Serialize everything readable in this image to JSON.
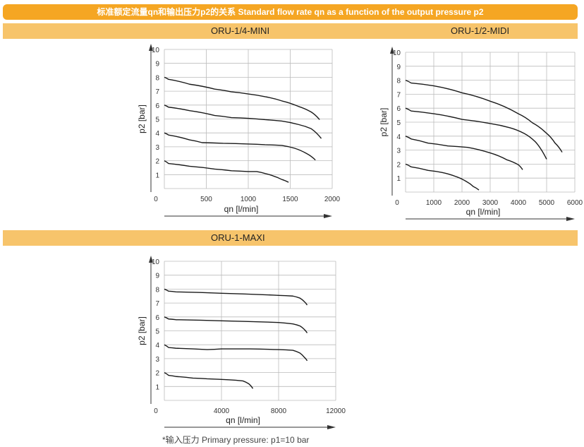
{
  "header": {
    "title": "标准额定流量qn和输出压力p2的关系 Standard flow rate qn as a function of the output pressure p2"
  },
  "sections": {
    "mini_label": "ORU-1/4-MINI",
    "midi_label": "ORU-1/2-MIDI",
    "maxi_label": "ORU-1-MAXI"
  },
  "footnote": "*输入压力 Primary pressure:  p1=10 bar",
  "colors": {
    "title_bar": "#f5a623",
    "section_bar": "#f7c46b",
    "curve": "#1a1a1a",
    "grid": "#bbbbbb"
  },
  "chart_data": [
    {
      "type": "line",
      "id": "mini",
      "xlabel": "qn [l/min]",
      "ylabel": "p2 [bar]",
      "xlim": [
        0,
        2000
      ],
      "ylim": [
        0,
        10
      ],
      "xticks": [
        "0",
        "500",
        "1000",
        "1500",
        "2000"
      ],
      "yticks": [
        "1",
        "2",
        "3",
        "4",
        "5",
        "6",
        "7",
        "8",
        "9",
        "10"
      ],
      "grid": true,
      "series": [
        {
          "x": [
            0,
            50,
            300,
            600,
            800,
            1000,
            1200,
            1400,
            1600,
            1750,
            1850
          ],
          "y": [
            8,
            7.85,
            7.5,
            7.15,
            6.95,
            6.8,
            6.6,
            6.3,
            5.9,
            5.5,
            4.95
          ]
        },
        {
          "x": [
            0,
            50,
            300,
            600,
            800,
            1000,
            1200,
            1400,
            1600,
            1750,
            1870
          ],
          "y": [
            6,
            5.85,
            5.6,
            5.25,
            5.1,
            5.05,
            4.95,
            4.85,
            4.6,
            4.3,
            3.6
          ]
        },
        {
          "x": [
            0,
            50,
            300,
            450,
            700,
            1000,
            1200,
            1400,
            1550,
            1700,
            1800
          ],
          "y": [
            4,
            3.85,
            3.5,
            3.3,
            3.25,
            3.2,
            3.15,
            3.1,
            2.9,
            2.5,
            2.05
          ]
        },
        {
          "x": [
            0,
            50,
            300,
            600,
            800,
            1000,
            1100,
            1200,
            1300,
            1400,
            1480
          ],
          "y": [
            2,
            1.8,
            1.6,
            1.4,
            1.28,
            1.22,
            1.22,
            1.08,
            0.9,
            0.65,
            0.45
          ]
        }
      ]
    },
    {
      "type": "line",
      "id": "midi",
      "xlabel": "qn [l/min]",
      "ylabel": "p2 [bar]",
      "xlim": [
        0,
        6000
      ],
      "ylim": [
        0,
        10
      ],
      "xticks": [
        "0",
        "1000",
        "2000",
        "3000",
        "4000",
        "5000",
        "6000"
      ],
      "yticks": [
        "1",
        "2",
        "3",
        "4",
        "5",
        "6",
        "7",
        "8",
        "9",
        "10"
      ],
      "grid": true,
      "series": [
        {
          "x": [
            0,
            200,
            1000,
            2000,
            3000,
            4000,
            4500,
            5000,
            5300,
            5550
          ],
          "y": [
            8,
            7.8,
            7.6,
            7.1,
            6.5,
            5.6,
            4.95,
            4.2,
            3.5,
            2.85
          ]
        },
        {
          "x": [
            0,
            200,
            1000,
            2000,
            3000,
            3700,
            4200,
            4600,
            5000
          ],
          "y": [
            6,
            5.8,
            5.6,
            5.2,
            4.9,
            4.6,
            4.2,
            3.6,
            2.35
          ]
        },
        {
          "x": [
            0,
            200,
            800,
            1500,
            2200,
            3000,
            3600,
            4000,
            4150
          ],
          "y": [
            4,
            3.8,
            3.5,
            3.3,
            3.2,
            2.8,
            2.3,
            1.95,
            1.6
          ]
        },
        {
          "x": [
            0,
            200,
            800,
            1300,
            1800,
            2200,
            2400,
            2600
          ],
          "y": [
            2,
            1.8,
            1.55,
            1.4,
            1.1,
            0.7,
            0.4,
            0.15
          ]
        }
      ]
    },
    {
      "type": "line",
      "id": "maxi",
      "xlabel": "qn [l/min]",
      "ylabel": "p2 [bar]",
      "xlim": [
        0,
        12000
      ],
      "ylim": [
        0,
        10
      ],
      "xticks": [
        "0",
        "4000",
        "8000",
        "12000"
      ],
      "yticks": [
        "1",
        "2",
        "3",
        "4",
        "5",
        "6",
        "7",
        "8",
        "9",
        "10"
      ],
      "grid": true,
      "series": [
        {
          "x": [
            0,
            300,
            800,
            4000,
            8000,
            9000,
            9500,
            9800,
            10000
          ],
          "y": [
            8,
            7.85,
            7.8,
            7.7,
            7.55,
            7.5,
            7.35,
            7.1,
            6.85
          ]
        },
        {
          "x": [
            0,
            300,
            800,
            4000,
            8000,
            9000,
            9500,
            9800,
            10000
          ],
          "y": [
            6,
            5.85,
            5.8,
            5.72,
            5.6,
            5.5,
            5.35,
            5.1,
            4.85
          ]
        },
        {
          "x": [
            0,
            300,
            800,
            3000,
            4000,
            6000,
            8000,
            9000,
            9500,
            9800,
            10000
          ],
          "y": [
            4,
            3.8,
            3.75,
            3.65,
            3.7,
            3.7,
            3.65,
            3.6,
            3.4,
            3.1,
            2.85
          ]
        },
        {
          "x": [
            0,
            300,
            800,
            2000,
            3000,
            4500,
            5500,
            5900,
            6200
          ],
          "y": [
            2,
            1.8,
            1.72,
            1.6,
            1.55,
            1.48,
            1.4,
            1.2,
            0.85
          ]
        }
      ]
    }
  ]
}
